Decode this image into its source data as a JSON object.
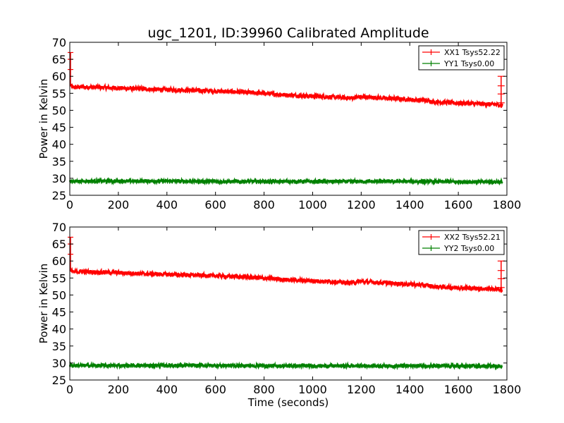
{
  "figure": {
    "title": "ugc_1201, ID:39960 Calibrated Amplitude"
  },
  "chart_data": [
    {
      "type": "line",
      "xlabel": "",
      "ylabel": "Power in Kelvin",
      "xlim": [
        0,
        1800
      ],
      "ylim": [
        25,
        70
      ],
      "xticks": [
        "0",
        "200",
        "400",
        "600",
        "800",
        "1000",
        "1200",
        "1400",
        "1600",
        "1800"
      ],
      "yticks": [
        "25",
        "30",
        "35",
        "40",
        "45",
        "50",
        "55",
        "60",
        "65",
        "70"
      ],
      "legend_position": "top-right",
      "series": [
        {
          "name": "XX1 Tsys52.22",
          "color": "#ff0000",
          "x": [
            0,
            2,
            10,
            50,
            100,
            200,
            300,
            400,
            500,
            600,
            700,
            800,
            900,
            1000,
            1100,
            1150,
            1200,
            1300,
            1400,
            1480,
            1500,
            1600,
            1700,
            1760,
            1782,
            1785
          ],
          "y": [
            67.0,
            57.5,
            56.8,
            56.9,
            56.8,
            56.6,
            56.3,
            56.1,
            55.9,
            55.7,
            55.4,
            55.0,
            54.5,
            54.2,
            53.9,
            53.6,
            54.0,
            53.6,
            53.2,
            52.8,
            52.5,
            52.2,
            51.9,
            51.7,
            51.5,
            60.0
          ]
        },
        {
          "name": "YY1 Tsys0.00",
          "color": "#008000",
          "x": [
            0,
            200,
            400,
            600,
            800,
            1000,
            1200,
            1400,
            1600,
            1785
          ],
          "y": [
            29.2,
            29.2,
            29.2,
            29.1,
            29.1,
            29.1,
            29.1,
            29.1,
            29.0,
            29.0
          ]
        }
      ]
    },
    {
      "type": "line",
      "xlabel": "Time (seconds)",
      "ylabel": "Power in Kelvin",
      "xlim": [
        0,
        1800
      ],
      "ylim": [
        25,
        70
      ],
      "xticks": [
        "0",
        "200",
        "400",
        "600",
        "800",
        "1000",
        "1200",
        "1400",
        "1600",
        "1800"
      ],
      "yticks": [
        "25",
        "30",
        "35",
        "40",
        "45",
        "50",
        "55",
        "60",
        "65",
        "70"
      ],
      "legend_position": "top-right",
      "series": [
        {
          "name": "XX2 Tsys52.21",
          "color": "#ff0000",
          "x": [
            0,
            2,
            10,
            50,
            100,
            200,
            300,
            400,
            500,
            600,
            700,
            800,
            900,
            1000,
            1100,
            1150,
            1200,
            1300,
            1400,
            1480,
            1500,
            1600,
            1700,
            1760,
            1782,
            1785
          ],
          "y": [
            67.0,
            57.5,
            56.8,
            56.9,
            56.8,
            56.6,
            56.3,
            56.1,
            55.9,
            55.7,
            55.4,
            55.0,
            54.5,
            54.2,
            53.9,
            53.6,
            54.0,
            53.6,
            53.2,
            52.8,
            52.5,
            52.2,
            51.9,
            51.7,
            51.5,
            60.0
          ]
        },
        {
          "name": "YY2 Tsys0.00",
          "color": "#008000",
          "x": [
            0,
            200,
            400,
            600,
            800,
            1000,
            1200,
            1400,
            1600,
            1785
          ],
          "y": [
            29.3,
            29.3,
            29.3,
            29.3,
            29.2,
            29.2,
            29.2,
            29.2,
            29.1,
            29.1
          ]
        }
      ]
    }
  ]
}
